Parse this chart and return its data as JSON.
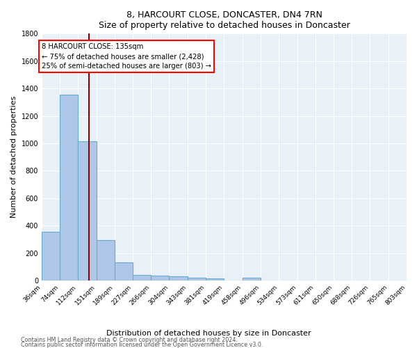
{
  "title": "8, HARCOURT CLOSE, DONCASTER, DN4 7RN",
  "subtitle": "Size of property relative to detached houses in Doncaster",
  "xlabel": "Distribution of detached houses by size in Doncaster",
  "ylabel": "Number of detached properties",
  "bar_color": "#aec6e8",
  "bar_edge_color": "#6aabd2",
  "background_color": "#e8f0f8",
  "grid_color": "white",
  "bins": [
    36,
    74,
    112,
    151,
    189,
    227,
    266,
    304,
    343,
    381,
    419,
    458,
    496,
    534,
    573,
    611,
    650,
    688,
    726,
    765,
    803
  ],
  "bin_labels": [
    "36sqm",
    "74sqm",
    "112sqm",
    "151sqm",
    "189sqm",
    "227sqm",
    "266sqm",
    "304sqm",
    "343sqm",
    "381sqm",
    "419sqm",
    "458sqm",
    "496sqm",
    "534sqm",
    "573sqm",
    "611sqm",
    "650sqm",
    "688sqm",
    "726sqm",
    "765sqm",
    "803sqm"
  ],
  "values": [
    355,
    1355,
    1015,
    295,
    130,
    40,
    37,
    30,
    20,
    15,
    0,
    20,
    0,
    0,
    0,
    0,
    0,
    0,
    0,
    0
  ],
  "red_line_x": 135,
  "annotation_title": "8 HARCOURT CLOSE: 135sqm",
  "annotation_line1": "← 75% of detached houses are smaller (2,428)",
  "annotation_line2": "25% of semi-detached houses are larger (803) →",
  "ylim": [
    0,
    1800
  ],
  "yticks": [
    0,
    200,
    400,
    600,
    800,
    1000,
    1200,
    1400,
    1600,
    1800
  ],
  "footnote1": "Contains HM Land Registry data © Crown copyright and database right 2024.",
  "footnote2": "Contains public sector information licensed under the Open Government Licence v3.0."
}
